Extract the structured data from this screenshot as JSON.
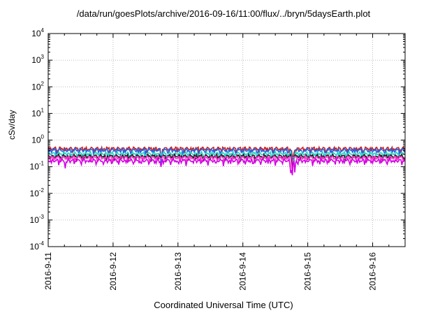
{
  "chart_data": {
    "type": "line",
    "title": "/data/run/goesPlots/archive/2016-09-16/11:00/flux/../bryn/5daysEarth.plot",
    "xlabel": "Coordinated Universal Time (UTC)",
    "ylabel": "cSv/day",
    "yscale": "log",
    "ylim": [
      0.0001,
      10000
    ],
    "xlim": [
      "2016-09-11 00:00",
      "2016-09-16 12:00"
    ],
    "grid": true,
    "x_tick_labels": [
      "2016-9-11",
      "2016-9-12",
      "2016-9-13",
      "2016-9-14",
      "2016-9-15",
      "2016-9-16"
    ],
    "y_tick_labels": [
      {
        "base": "10",
        "exp": "-4"
      },
      {
        "base": "10",
        "exp": "-3"
      },
      {
        "base": "10",
        "exp": "-2"
      },
      {
        "base": "10",
        "exp": "-1"
      },
      {
        "base": "10",
        "exp": "0"
      },
      {
        "base": "10",
        "exp": "1"
      },
      {
        "base": "10",
        "exp": "2"
      },
      {
        "base": "10",
        "exp": "3"
      },
      {
        "base": "10",
        "exp": "4"
      }
    ],
    "series": [
      {
        "color": "#cc1f1f",
        "base": 0.48,
        "anomalies": [
          {
            "t": 1.74,
            "f": 0.42
          },
          {
            "t": 3.76,
            "f": 0.45
          },
          {
            "t": 3.78,
            "f": 0.5
          },
          {
            "t": 5.93,
            "f": 0.5
          }
        ]
      },
      {
        "color": "#2a5fe0",
        "base": 0.42,
        "anomalies": [
          {
            "t": 1.74,
            "f": 0.42
          },
          {
            "t": 3.76,
            "f": 0.4
          },
          {
            "t": 3.78,
            "f": 0.45
          },
          {
            "t": 5.93,
            "f": 0.5
          }
        ]
      },
      {
        "color": "#22d3c5",
        "base": 0.31,
        "anomalies": [
          {
            "t": 3.76,
            "f": 0.4
          },
          {
            "t": 3.78,
            "f": 0.45
          },
          {
            "t": 5.93,
            "f": 0.5
          }
        ]
      },
      {
        "color": "#1a1a1a",
        "base": 0.25,
        "anomalies": [
          {
            "t": 3.76,
            "f": 0.35
          },
          {
            "t": 5.93,
            "f": 0.5
          }
        ]
      },
      {
        "color": "#ff33cc",
        "base": 0.22,
        "anomalies": [
          {
            "t": 3.76,
            "f": 0.3
          },
          {
            "t": 5.93,
            "f": 0.5
          }
        ]
      },
      {
        "color": "#d400e6",
        "base": 0.17,
        "anomalies": [
          {
            "t": 0.26,
            "f": 0.6
          },
          {
            "t": 1.74,
            "f": 0.6
          },
          {
            "t": 3.74,
            "f": 0.35
          },
          {
            "t": 3.76,
            "f": 0.3
          },
          {
            "t": 3.8,
            "f": 0.35
          },
          {
            "t": 5.93,
            "f": 0.55
          }
        ]
      }
    ]
  }
}
